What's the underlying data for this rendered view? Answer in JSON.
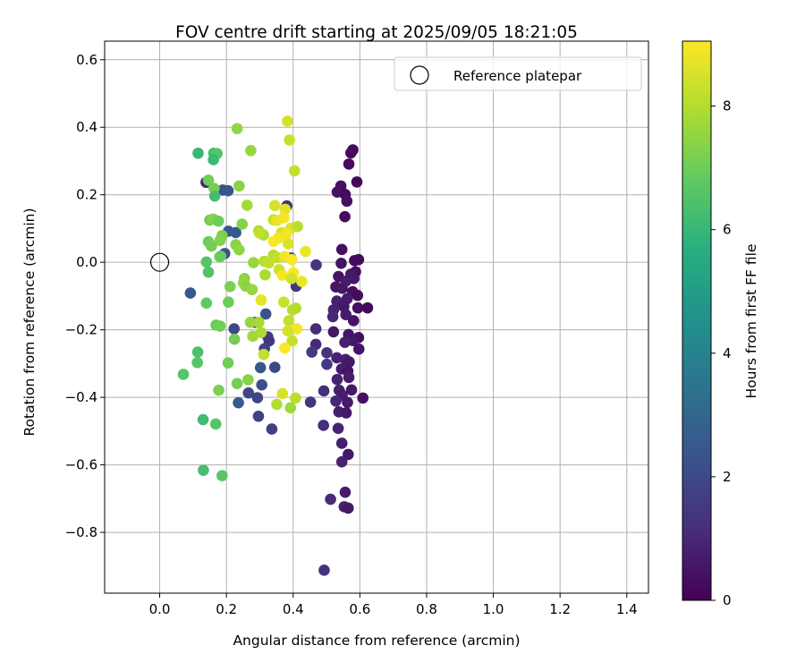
{
  "chart_data": {
    "type": "scatter",
    "title": "FOV centre drift starting at 2025/09/05 18:21:05",
    "xlabel": "Angular distance from reference (arcmin)",
    "ylabel": "Rotation from reference (arcmin)",
    "xlim": [
      -0.165,
      1.465
    ],
    "ylim": [
      -0.98,
      0.655
    ],
    "xticks": [
      0.0,
      0.2,
      0.4,
      0.6,
      0.8,
      1.0,
      1.2,
      1.4
    ],
    "xtick_labels": [
      "0.0",
      "0.2",
      "0.4",
      "0.6",
      "0.8",
      "1.0",
      "1.2",
      "1.4"
    ],
    "yticks": [
      0.6,
      0.4,
      0.2,
      0.0,
      -0.2,
      -0.4,
      -0.6,
      -0.8
    ],
    "ytick_labels": [
      "0.6",
      "0.4",
      "0.2",
      "0.0",
      "−0.2",
      "−0.4",
      "−0.6",
      "−0.8"
    ],
    "grid": true,
    "legend_placement": "top-right",
    "legend": [
      {
        "label": "Reference platepar",
        "marker": "open-circle"
      }
    ],
    "reference_point": {
      "x": 0.0,
      "y": 0.0
    },
    "colorbar": {
      "label": "Hours from first FF file",
      "colormap": "viridis",
      "range": [
        0,
        9.05
      ],
      "ticks": [
        0,
        2,
        4,
        6,
        8
      ],
      "tick_labels": [
        "0",
        "2",
        "4",
        "6",
        "8"
      ]
    },
    "point_color_meaning": "Hours from first FF file",
    "points": [
      {
        "x": 0.579,
        "y": 0.333,
        "c": 0.2
      },
      {
        "x": 0.573,
        "y": 0.324,
        "c": 0.3
      },
      {
        "x": 0.567,
        "y": 0.291,
        "c": 0.3
      },
      {
        "x": 0.591,
        "y": 0.238,
        "c": 0.2
      },
      {
        "x": 0.543,
        "y": 0.226,
        "c": 0.4
      },
      {
        "x": 0.532,
        "y": 0.208,
        "c": 0.5
      },
      {
        "x": 0.556,
        "y": 0.201,
        "c": 0.3
      },
      {
        "x": 0.561,
        "y": 0.181,
        "c": 0.4
      },
      {
        "x": 0.555,
        "y": 0.135,
        "c": 0.3
      },
      {
        "x": 0.546,
        "y": 0.038,
        "c": 0.4
      },
      {
        "x": 0.596,
        "y": 0.008,
        "c": 0.2
      },
      {
        "x": 0.584,
        "y": 0.005,
        "c": 0.3
      },
      {
        "x": 0.544,
        "y": -0.003,
        "c": 0.5
      },
      {
        "x": 0.587,
        "y": -0.028,
        "c": 0.4
      },
      {
        "x": 0.573,
        "y": -0.035,
        "c": 0.6
      },
      {
        "x": 0.536,
        "y": -0.042,
        "c": 0.5
      },
      {
        "x": 0.582,
        "y": -0.048,
        "c": 0.6
      },
      {
        "x": 0.558,
        "y": -0.056,
        "c": 0.7
      },
      {
        "x": 0.528,
        "y": -0.073,
        "c": 0.5
      },
      {
        "x": 0.547,
        "y": -0.077,
        "c": 0.6
      },
      {
        "x": 0.578,
        "y": -0.087,
        "c": 0.4
      },
      {
        "x": 0.593,
        "y": -0.098,
        "c": 0.3
      },
      {
        "x": 0.562,
        "y": -0.108,
        "c": 0.7
      },
      {
        "x": 0.531,
        "y": -0.115,
        "c": 0.8
      },
      {
        "x": 0.552,
        "y": -0.131,
        "c": 0.6
      },
      {
        "x": 0.594,
        "y": -0.135,
        "c": 0.4
      },
      {
        "x": 0.623,
        "y": -0.135,
        "c": 0.2
      },
      {
        "x": 0.521,
        "y": -0.141,
        "c": 0.9
      },
      {
        "x": 0.558,
        "y": -0.155,
        "c": 0.7
      },
      {
        "x": 0.519,
        "y": -0.161,
        "c": 1.0
      },
      {
        "x": 0.581,
        "y": -0.173,
        "c": 0.5
      },
      {
        "x": 0.468,
        "y": -0.197,
        "c": 1.1
      },
      {
        "x": 0.521,
        "y": -0.206,
        "c": 0.6
      },
      {
        "x": 0.566,
        "y": -0.214,
        "c": 0.5
      },
      {
        "x": 0.596,
        "y": -0.223,
        "c": 0.4
      },
      {
        "x": 0.579,
        "y": -0.232,
        "c": 0.6
      },
      {
        "x": 0.555,
        "y": -0.237,
        "c": 0.8
      },
      {
        "x": 0.468,
        "y": -0.243,
        "c": 1.1
      },
      {
        "x": 0.597,
        "y": -0.257,
        "c": 0.5
      },
      {
        "x": 0.456,
        "y": -0.266,
        "c": 1.6
      },
      {
        "x": 0.501,
        "y": -0.268,
        "c": 1.3
      },
      {
        "x": 0.531,
        "y": -0.283,
        "c": 0.9
      },
      {
        "x": 0.557,
        "y": -0.288,
        "c": 0.8
      },
      {
        "x": 0.568,
        "y": -0.295,
        "c": 0.6
      },
      {
        "x": 0.501,
        "y": -0.302,
        "c": 1.5
      },
      {
        "x": 0.545,
        "y": -0.316,
        "c": 0.7
      },
      {
        "x": 0.564,
        "y": -0.322,
        "c": 0.5
      },
      {
        "x": 0.532,
        "y": -0.347,
        "c": 0.9
      },
      {
        "x": 0.567,
        "y": -0.341,
        "c": 0.7
      },
      {
        "x": 0.538,
        "y": -0.379,
        "c": 0.8
      },
      {
        "x": 0.575,
        "y": -0.378,
        "c": 0.6
      },
      {
        "x": 0.492,
        "y": -0.381,
        "c": 1.2
      },
      {
        "x": 0.547,
        "y": -0.394,
        "c": 0.7
      },
      {
        "x": 0.609,
        "y": -0.402,
        "c": 0.4
      },
      {
        "x": 0.528,
        "y": -0.411,
        "c": 1.0
      },
      {
        "x": 0.563,
        "y": -0.415,
        "c": 0.6
      },
      {
        "x": 0.537,
        "y": -0.443,
        "c": 0.8
      },
      {
        "x": 0.559,
        "y": -0.446,
        "c": 0.6
      },
      {
        "x": 0.452,
        "y": -0.414,
        "c": 1.4
      },
      {
        "x": 0.491,
        "y": -0.483,
        "c": 1.2
      },
      {
        "x": 0.535,
        "y": -0.492,
        "c": 0.9
      },
      {
        "x": 0.546,
        "y": -0.536,
        "c": 0.8
      },
      {
        "x": 0.565,
        "y": -0.569,
        "c": 0.6
      },
      {
        "x": 0.546,
        "y": -0.591,
        "c": 0.9
      },
      {
        "x": 0.512,
        "y": -0.702,
        "c": 1.1
      },
      {
        "x": 0.556,
        "y": -0.681,
        "c": 0.7
      },
      {
        "x": 0.553,
        "y": -0.724,
        "c": 0.8
      },
      {
        "x": 0.565,
        "y": -0.728,
        "c": 0.6
      },
      {
        "x": 0.493,
        "y": -0.912,
        "c": 1.3
      },
      {
        "x": 0.469,
        "y": -0.008,
        "c": 1.4
      },
      {
        "x": 0.393,
        "y": 0.013,
        "c": 2.0
      },
      {
        "x": 0.381,
        "y": 0.167,
        "c": 1.3
      },
      {
        "x": 0.409,
        "y": -0.071,
        "c": 1.5
      },
      {
        "x": 0.189,
        "y": 0.214,
        "c": 2.2
      },
      {
        "x": 0.205,
        "y": 0.212,
        "c": 2.4
      },
      {
        "x": 0.139,
        "y": 0.237,
        "c": 1.0
      },
      {
        "x": 0.206,
        "y": 0.092,
        "c": 2.5
      },
      {
        "x": 0.228,
        "y": 0.088,
        "c": 2.6
      },
      {
        "x": 0.195,
        "y": 0.026,
        "c": 2.3
      },
      {
        "x": 0.092,
        "y": -0.091,
        "c": 2.5
      },
      {
        "x": 0.223,
        "y": -0.197,
        "c": 2.0
      },
      {
        "x": 0.286,
        "y": -0.178,
        "c": 2.1
      },
      {
        "x": 0.318,
        "y": -0.153,
        "c": 2.3
      },
      {
        "x": 0.324,
        "y": -0.221,
        "c": 1.6
      },
      {
        "x": 0.328,
        "y": -0.233,
        "c": 1.5
      },
      {
        "x": 0.345,
        "y": -0.311,
        "c": 2.0
      },
      {
        "x": 0.302,
        "y": -0.312,
        "c": 2.4
      },
      {
        "x": 0.306,
        "y": -0.363,
        "c": 2.2
      },
      {
        "x": 0.266,
        "y": -0.387,
        "c": 2.0
      },
      {
        "x": 0.293,
        "y": -0.401,
        "c": 1.9
      },
      {
        "x": 0.236,
        "y": -0.416,
        "c": 2.6
      },
      {
        "x": 0.296,
        "y": -0.456,
        "c": 1.8
      },
      {
        "x": 0.336,
        "y": -0.494,
        "c": 1.7
      },
      {
        "x": 0.314,
        "y": -0.256,
        "c": 1.8
      },
      {
        "x": 0.232,
        "y": 0.396,
        "c": 7.5
      },
      {
        "x": 0.273,
        "y": 0.331,
        "c": 7.6
      },
      {
        "x": 0.162,
        "y": 0.323,
        "c": 6.2
      },
      {
        "x": 0.172,
        "y": 0.322,
        "c": 6.6
      },
      {
        "x": 0.115,
        "y": 0.323,
        "c": 6.0
      },
      {
        "x": 0.161,
        "y": 0.304,
        "c": 6.1
      },
      {
        "x": 0.146,
        "y": 0.243,
        "c": 7.0
      },
      {
        "x": 0.163,
        "y": 0.219,
        "c": 7.1
      },
      {
        "x": 0.238,
        "y": 0.226,
        "c": 7.4
      },
      {
        "x": 0.165,
        "y": 0.196,
        "c": 6.3
      },
      {
        "x": 0.383,
        "y": 0.418,
        "c": 8.5
      },
      {
        "x": 0.389,
        "y": 0.362,
        "c": 8.3
      },
      {
        "x": 0.404,
        "y": 0.271,
        "c": 8.2
      },
      {
        "x": 0.262,
        "y": 0.169,
        "c": 7.8
      },
      {
        "x": 0.345,
        "y": 0.168,
        "c": 8.5
      },
      {
        "x": 0.376,
        "y": 0.157,
        "c": 8.7
      },
      {
        "x": 0.15,
        "y": 0.125,
        "c": 7.1
      },
      {
        "x": 0.161,
        "y": 0.128,
        "c": 7.3
      },
      {
        "x": 0.176,
        "y": 0.122,
        "c": 7.0
      },
      {
        "x": 0.247,
        "y": 0.113,
        "c": 7.3
      },
      {
        "x": 0.341,
        "y": 0.126,
        "c": 8.3
      },
      {
        "x": 0.352,
        "y": 0.124,
        "c": 8.8
      },
      {
        "x": 0.372,
        "y": 0.132,
        "c": 8.9
      },
      {
        "x": 0.393,
        "y": 0.101,
        "c": 8.6
      },
      {
        "x": 0.413,
        "y": 0.106,
        "c": 8.1
      },
      {
        "x": 0.365,
        "y": 0.088,
        "c": 8.5
      },
      {
        "x": 0.379,
        "y": 0.083,
        "c": 8.9
      },
      {
        "x": 0.297,
        "y": 0.093,
        "c": 7.9
      },
      {
        "x": 0.311,
        "y": 0.081,
        "c": 8.0
      },
      {
        "x": 0.299,
        "y": 0.087,
        "c": 8.2
      },
      {
        "x": 0.187,
        "y": 0.079,
        "c": 7.2
      },
      {
        "x": 0.181,
        "y": 0.065,
        "c": 7.3
      },
      {
        "x": 0.146,
        "y": 0.061,
        "c": 7.0
      },
      {
        "x": 0.155,
        "y": 0.048,
        "c": 7.1
      },
      {
        "x": 0.228,
        "y": 0.052,
        "c": 7.4
      },
      {
        "x": 0.341,
        "y": 0.062,
        "c": 9.0
      },
      {
        "x": 0.356,
        "y": 0.072,
        "c": 8.9
      },
      {
        "x": 0.385,
        "y": 0.055,
        "c": 8.6
      },
      {
        "x": 0.437,
        "y": 0.032,
        "c": 8.8
      },
      {
        "x": 0.238,
        "y": 0.037,
        "c": 7.5
      },
      {
        "x": 0.18,
        "y": 0.016,
        "c": 7.2
      },
      {
        "x": 0.183,
        "y": 0.018,
        "c": 6.9
      },
      {
        "x": 0.341,
        "y": 0.021,
        "c": 8.0
      },
      {
        "x": 0.352,
        "y": 0.014,
        "c": 8.2
      },
      {
        "x": 0.375,
        "y": 0.017,
        "c": 8.9
      },
      {
        "x": 0.396,
        "y": 0.008,
        "c": 9.0
      },
      {
        "x": 0.281,
        "y": -0.001,
        "c": 7.6
      },
      {
        "x": 0.313,
        "y": 0.003,
        "c": 8.1
      },
      {
        "x": 0.327,
        "y": -0.002,
        "c": 8.2
      },
      {
        "x": 0.14,
        "y": 0.001,
        "c": 6.6
      },
      {
        "x": 0.358,
        "y": -0.022,
        "c": 8.4
      },
      {
        "x": 0.368,
        "y": -0.038,
        "c": 8.9
      },
      {
        "x": 0.401,
        "y": -0.031,
        "c": 9.0
      },
      {
        "x": 0.426,
        "y": -0.057,
        "c": 8.8
      },
      {
        "x": 0.146,
        "y": -0.029,
        "c": 6.5
      },
      {
        "x": 0.254,
        "y": -0.048,
        "c": 7.5
      },
      {
        "x": 0.251,
        "y": -0.061,
        "c": 7.6
      },
      {
        "x": 0.258,
        "y": -0.071,
        "c": 7.4
      },
      {
        "x": 0.316,
        "y": -0.037,
        "c": 7.9
      },
      {
        "x": 0.395,
        "y": -0.048,
        "c": 8.4
      },
      {
        "x": 0.211,
        "y": -0.072,
        "c": 7.2
      },
      {
        "x": 0.277,
        "y": -0.081,
        "c": 7.6
      },
      {
        "x": 0.304,
        "y": -0.112,
        "c": 8.7
      },
      {
        "x": 0.14,
        "y": -0.121,
        "c": 6.8
      },
      {
        "x": 0.206,
        "y": -0.118,
        "c": 7.0
      },
      {
        "x": 0.372,
        "y": -0.118,
        "c": 8.3
      },
      {
        "x": 0.398,
        "y": -0.141,
        "c": 8.1
      },
      {
        "x": 0.408,
        "y": -0.136,
        "c": 8.0
      },
      {
        "x": 0.169,
        "y": -0.186,
        "c": 6.9
      },
      {
        "x": 0.181,
        "y": -0.189,
        "c": 7.1
      },
      {
        "x": 0.272,
        "y": -0.178,
        "c": 7.6
      },
      {
        "x": 0.297,
        "y": -0.178,
        "c": 7.8
      },
      {
        "x": 0.387,
        "y": -0.173,
        "c": 8.2
      },
      {
        "x": 0.411,
        "y": -0.197,
        "c": 8.9
      },
      {
        "x": 0.224,
        "y": -0.228,
        "c": 7.1
      },
      {
        "x": 0.279,
        "y": -0.219,
        "c": 7.7
      },
      {
        "x": 0.304,
        "y": -0.208,
        "c": 7.9
      },
      {
        "x": 0.384,
        "y": -0.203,
        "c": 8.5
      },
      {
        "x": 0.397,
        "y": -0.233,
        "c": 8.3
      },
      {
        "x": 0.375,
        "y": -0.254,
        "c": 9.0
      },
      {
        "x": 0.312,
        "y": -0.273,
        "c": 8.2
      },
      {
        "x": 0.114,
        "y": -0.266,
        "c": 6.4
      },
      {
        "x": 0.113,
        "y": -0.297,
        "c": 6.6
      },
      {
        "x": 0.205,
        "y": -0.298,
        "c": 7.0
      },
      {
        "x": 0.071,
        "y": -0.332,
        "c": 6.6
      },
      {
        "x": 0.265,
        "y": -0.348,
        "c": 7.4
      },
      {
        "x": 0.232,
        "y": -0.359,
        "c": 7.1
      },
      {
        "x": 0.177,
        "y": -0.379,
        "c": 7.2
      },
      {
        "x": 0.368,
        "y": -0.389,
        "c": 8.5
      },
      {
        "x": 0.407,
        "y": -0.402,
        "c": 8.1
      },
      {
        "x": 0.351,
        "y": -0.421,
        "c": 8.0
      },
      {
        "x": 0.392,
        "y": -0.431,
        "c": 7.7
      },
      {
        "x": 0.13,
        "y": -0.466,
        "c": 6.2
      },
      {
        "x": 0.168,
        "y": -0.479,
        "c": 6.6
      },
      {
        "x": 0.131,
        "y": -0.616,
        "c": 6.3
      },
      {
        "x": 0.187,
        "y": -0.632,
        "c": 6.7
      }
    ]
  }
}
